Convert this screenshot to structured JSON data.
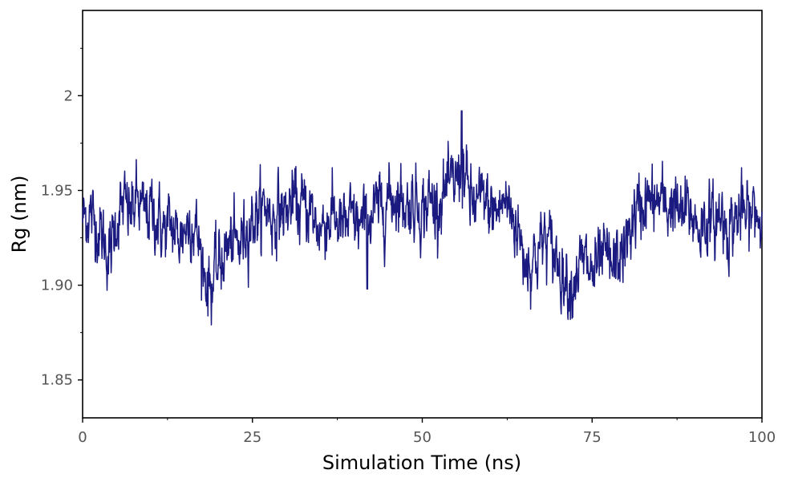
{
  "chart_data": {
    "type": "line",
    "title": "",
    "xlabel": "Simulation Time (ns)",
    "ylabel": "Rg (nm)",
    "xlim": [
      0,
      100
    ],
    "ylim": [
      1.83,
      2.045
    ],
    "x_ticks": [
      0,
      25,
      50,
      75,
      100
    ],
    "x_tick_labels": [
      "0",
      "25",
      "50",
      "75",
      "100"
    ],
    "y_ticks": [
      1.85,
      1.9,
      1.95,
      2.0
    ],
    "y_tick_labels": [
      "1.85",
      "1.90",
      "1.95",
      "2"
    ],
    "grid": false,
    "legend": "none",
    "series": [
      {
        "color": "#1a1a80",
        "x": [
          0,
          1,
          2,
          3,
          4,
          5,
          6,
          7,
          8,
          9,
          10,
          11,
          12,
          13,
          14,
          15,
          16,
          17,
          18,
          19,
          20,
          21,
          22,
          23,
          24,
          25,
          26,
          27,
          28,
          29,
          30,
          31,
          32,
          33,
          34,
          35,
          36,
          37,
          38,
          39,
          40,
          41,
          42,
          43,
          44,
          45,
          46,
          47,
          48,
          49,
          50,
          51,
          52,
          53,
          54,
          55,
          56,
          57,
          58,
          59,
          60,
          61,
          62,
          63,
          64,
          65,
          66,
          67,
          68,
          69,
          70,
          71,
          72,
          73,
          74,
          75,
          76,
          77,
          78,
          79,
          80,
          81,
          82,
          83,
          84,
          85,
          86,
          87,
          88,
          89,
          90,
          91,
          92,
          93,
          94,
          95,
          96,
          97,
          98,
          99,
          100
        ],
        "y": [
          1.935,
          1.938,
          1.932,
          1.925,
          1.915,
          1.935,
          1.942,
          1.938,
          1.945,
          1.937,
          1.94,
          1.935,
          1.928,
          1.932,
          1.925,
          1.93,
          1.935,
          1.925,
          1.905,
          1.9,
          1.91,
          1.918,
          1.922,
          1.92,
          1.93,
          1.935,
          1.938,
          1.942,
          1.935,
          1.94,
          1.938,
          1.945,
          1.94,
          1.942,
          1.935,
          1.93,
          1.935,
          1.938,
          1.93,
          1.932,
          1.935,
          1.93,
          1.935,
          1.938,
          1.942,
          1.945,
          1.948,
          1.945,
          1.942,
          1.945,
          1.94,
          1.945,
          1.942,
          1.948,
          1.95,
          1.955,
          1.962,
          1.945,
          1.942,
          1.945,
          1.94,
          1.938,
          1.945,
          1.94,
          1.93,
          1.915,
          1.912,
          1.918,
          1.925,
          1.92,
          1.912,
          1.905,
          1.9,
          1.91,
          1.912,
          1.905,
          1.91,
          1.915,
          1.908,
          1.915,
          1.92,
          1.935,
          1.94,
          1.945,
          1.942,
          1.945,
          1.94,
          1.945,
          1.935,
          1.94,
          1.935,
          1.93,
          1.935,
          1.932,
          1.938,
          1.93,
          1.935,
          1.938,
          1.935,
          1.94,
          1.932
        ]
      }
    ]
  }
}
